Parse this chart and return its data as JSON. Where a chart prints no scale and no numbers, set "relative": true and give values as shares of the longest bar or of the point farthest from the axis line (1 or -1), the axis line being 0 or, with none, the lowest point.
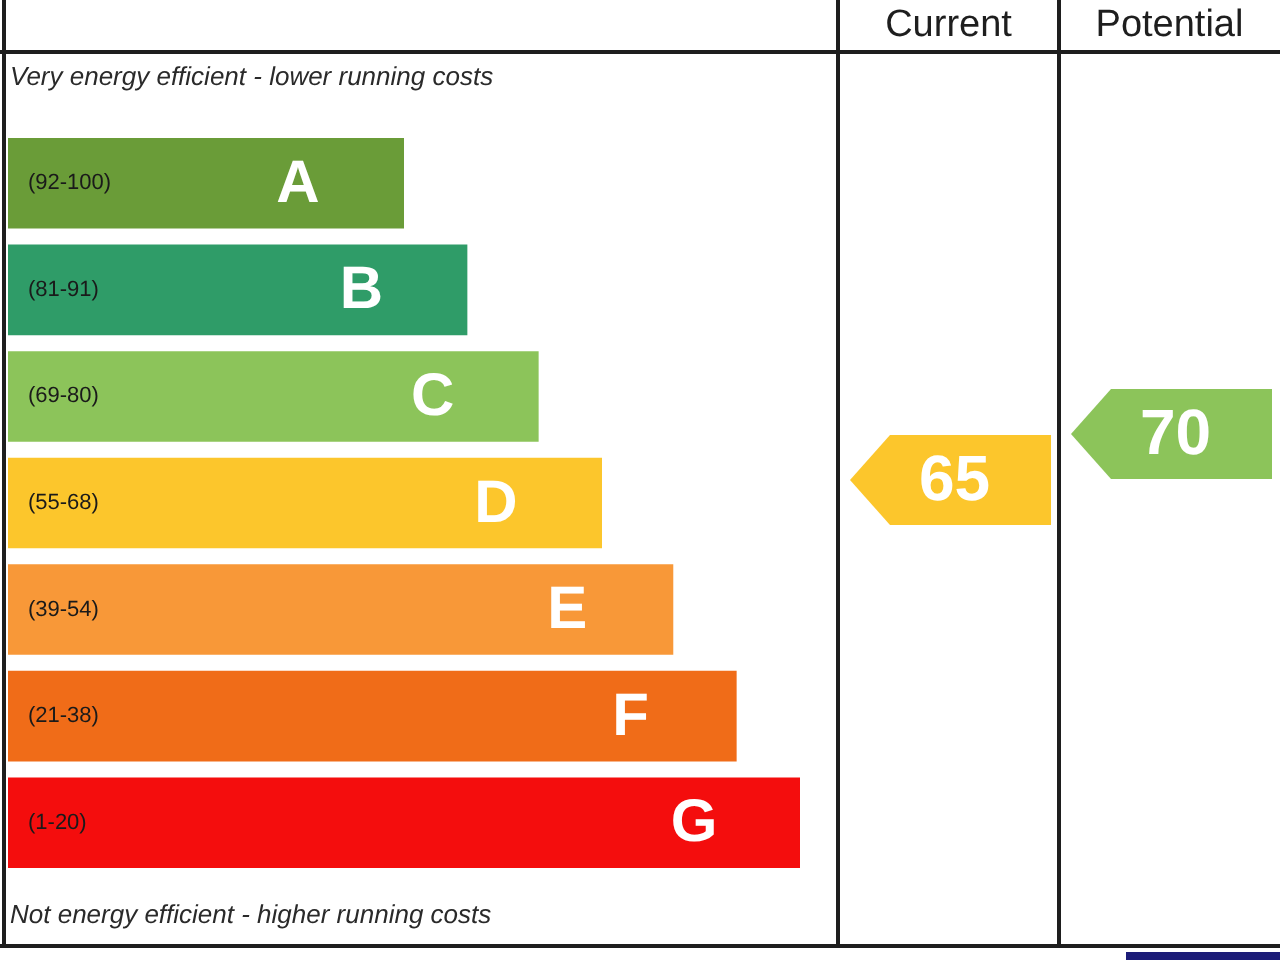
{
  "chart_data": [
    {
      "type": "bar",
      "orientation": "horizontal",
      "relative": true,
      "title": "Very energy efficient - lower running costs",
      "categories": [
        "(92-100)",
        "(81-91)",
        "(69-80)",
        "(55-68)",
        "(39-54)",
        "(21-38)",
        "(1-20)"
      ],
      "values": [
        0.5,
        0.58,
        0.67,
        0.75,
        0.84,
        0.92,
        1
      ],
      "colors": [
        "#6a9c38",
        "#2f9c68",
        "#8cc45a",
        "#fcc62c",
        "#f89838",
        "#f06c18",
        "#f40d0d"
      ],
      "annotations": [
        "Not energy efficient - higher running costs",
        {
          "text": "A",
          "x": 0.5,
          "y": "(92-100)"
        },
        {
          "text": "B",
          "x": 0.58,
          "y": "(81-91)"
        },
        {
          "text": "C",
          "x": 0.67,
          "y": "(69-80)"
        },
        {
          "text": "D",
          "x": 0.75,
          "y": "(55-68)"
        },
        {
          "text": "E",
          "x": 0.84,
          "y": "(39-54)"
        },
        {
          "text": "F",
          "x": 0.92,
          "y": "(21-38)"
        },
        {
          "text": "G",
          "x": 1,
          "y": "(1-20)"
        }
      ]
    },
    {
      "type": "other",
      "categories": [
        "Current",
        "Potential"
      ],
      "values": [
        65,
        70
      ],
      "colors": [
        "#fcc62c",
        "#8cc45a"
      ],
      "data_labels": true
    }
  ]
}
